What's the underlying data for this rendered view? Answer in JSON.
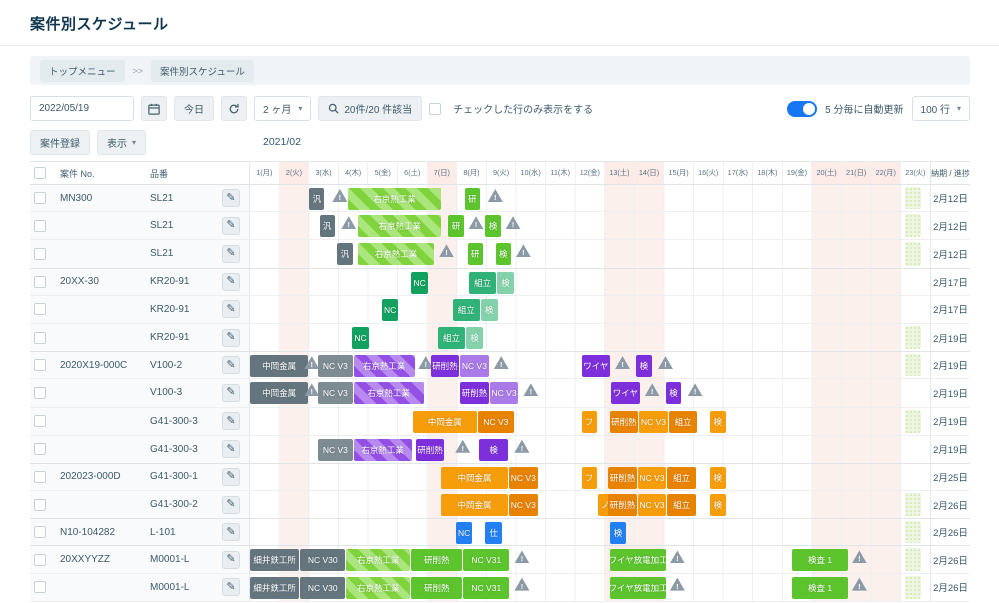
{
  "page": {
    "title": "案件別スケジュール"
  },
  "breadcrumb": {
    "items": [
      "トップメニュー",
      "案件別スケジュール"
    ],
    "sep": ">>"
  },
  "icons": {
    "edit": "✎",
    "chevron_down": "▾"
  },
  "colors": {
    "accent_blue": "#1777f2",
    "holiday_pink": "#fcf0ec",
    "green": "#5cc42d",
    "purple": "#7e2fdc",
    "orange": "#f59d0a",
    "gray": "#64757e",
    "warn": "#8b9aa6"
  },
  "toolbar": {
    "date": "2022/05/19",
    "today": "今日",
    "period": "2 ヶ月",
    "search_label": "20件/20 件該当",
    "filter_checkbox_label": "チェックした行のみ表示をする",
    "auto_refresh_label": "5 分毎に自動更新",
    "rows_select": "100 行"
  },
  "actions": {
    "register": "案件登録",
    "display": "表示"
  },
  "gantt": {
    "month": "2021/02",
    "col_no": "案件 No.",
    "col_part": "品番",
    "col_due": "納期 / 進捗",
    "days": [
      {
        "label": "1(月)",
        "off": false
      },
      {
        "label": "2(火)",
        "off": true
      },
      {
        "label": "3(水)",
        "off": false
      },
      {
        "label": "4(木)",
        "off": false
      },
      {
        "label": "5(金)",
        "off": false
      },
      {
        "label": "6(土)",
        "off": false
      },
      {
        "label": "7(日)",
        "off": true
      },
      {
        "label": "8(月)",
        "off": false
      },
      {
        "label": "9(火)",
        "off": false
      },
      {
        "label": "10(水)",
        "off": false
      },
      {
        "label": "11(木)",
        "off": false
      },
      {
        "label": "12(金)",
        "off": false
      },
      {
        "label": "13(土)",
        "off": true
      },
      {
        "label": "14(日)",
        "off": true
      },
      {
        "label": "15(月)",
        "off": false
      },
      {
        "label": "16(火)",
        "off": false
      },
      {
        "label": "17(水)",
        "off": false
      },
      {
        "label": "18(木)",
        "off": false
      },
      {
        "label": "19(金)",
        "off": false
      },
      {
        "label": "20(土)",
        "off": true
      },
      {
        "label": "21(日)",
        "off": true
      },
      {
        "label": "22(月)",
        "off": true
      },
      {
        "label": "23(火)",
        "off": false
      }
    ]
  },
  "rows": [
    {
      "no": "MN300",
      "part": "SL21",
      "due": "2月12日",
      "progress": true,
      "bars": [
        {
          "t": "bar",
          "l": "汎",
          "c": "gray",
          "s": 3.0,
          "w": 0.55
        },
        {
          "t": "warn",
          "s": 3.75
        },
        {
          "t": "bar",
          "l": "右京熱工業",
          "c": "gstripe",
          "s": 4.3,
          "w": 3.2
        },
        {
          "t": "bar",
          "l": "研",
          "c": "green",
          "s": 8.25,
          "w": 0.55
        },
        {
          "t": "warn",
          "s": 9.0
        }
      ]
    },
    {
      "no": "",
      "part": "SL21",
      "due": "2月12日",
      "progress": true,
      "bars": [
        {
          "t": "bar",
          "l": "汎",
          "c": "gray",
          "s": 3.35,
          "w": 0.55
        },
        {
          "t": "warn",
          "s": 4.05
        },
        {
          "t": "bar",
          "l": "右京熱工業",
          "c": "gstripe",
          "s": 4.65,
          "w": 2.85
        },
        {
          "t": "bar",
          "l": "研",
          "c": "green",
          "s": 7.7,
          "w": 0.55
        },
        {
          "t": "warn",
          "s": 8.35
        },
        {
          "t": "bar",
          "l": "検",
          "c": "green",
          "s": 8.95,
          "w": 0.55
        },
        {
          "t": "warn",
          "s": 9.6
        }
      ]
    },
    {
      "no": "",
      "part": "SL21",
      "due": "2月12日",
      "progress": true,
      "bars": [
        {
          "t": "bar",
          "l": "汎",
          "c": "gray",
          "s": 3.95,
          "w": 0.55
        },
        {
          "t": "bar",
          "l": "右京熱工業",
          "c": "gstripe",
          "s": 4.65,
          "w": 2.6
        },
        {
          "t": "warn",
          "s": 7.35
        },
        {
          "t": "bar",
          "l": "研",
          "c": "green",
          "s": 8.35,
          "w": 0.55
        },
        {
          "t": "bar",
          "l": "検",
          "c": "green",
          "s": 9.3,
          "w": 0.55
        },
        {
          "t": "warn",
          "s": 9.95
        }
      ]
    },
    {
      "no": "20XX-30",
      "part": "KR20-91",
      "due": "2月17日",
      "progress": false,
      "bars": [
        {
          "t": "bar",
          "l": "NC",
          "c": "gdark",
          "s": 6.45,
          "w": 0.6
        },
        {
          "t": "bar",
          "l": "組立",
          "c": "gmid",
          "s": 8.4,
          "w": 0.95
        },
        {
          "t": "bar",
          "l": "検",
          "c": "glight",
          "s": 9.35,
          "w": 0.6
        }
      ]
    },
    {
      "no": "",
      "part": "KR20-91",
      "due": "2月17日",
      "progress": false,
      "bars": [
        {
          "t": "bar",
          "l": "NC",
          "c": "gdark",
          "s": 5.45,
          "w": 0.6
        },
        {
          "t": "bar",
          "l": "組立",
          "c": "gmid",
          "s": 7.85,
          "w": 0.95
        },
        {
          "t": "bar",
          "l": "検",
          "c": "glight",
          "s": 8.8,
          "w": 0.6
        }
      ]
    },
    {
      "no": "",
      "part": "KR20-91",
      "due": "2月19日",
      "progress": true,
      "bars": [
        {
          "t": "bar",
          "l": "NC",
          "c": "gdark",
          "s": 4.45,
          "w": 0.6
        },
        {
          "t": "bar",
          "l": "組立",
          "c": "gmid",
          "s": 7.35,
          "w": 0.95
        },
        {
          "t": "bar",
          "l": "検",
          "c": "glight",
          "s": 8.3,
          "w": 0.6
        }
      ]
    },
    {
      "no": "2020X19-000C",
      "part": "V100-2",
      "due": "2月19日",
      "progress": true,
      "bars": [
        {
          "t": "bar",
          "l": "中岡金属",
          "c": "gray",
          "s": 1,
          "w": 2.0
        },
        {
          "t": "warn",
          "s": 2.8
        },
        {
          "t": "bar",
          "l": "NC V3",
          "c": "gray2",
          "s": 3.3,
          "w": 1.2
        },
        {
          "t": "bar",
          "l": "右京熱工業",
          "c": "pstripe",
          "s": 4.5,
          "w": 2.1
        },
        {
          "t": "warn",
          "s": 6.65
        },
        {
          "t": "bar",
          "l": "研削熱",
          "c": "purple",
          "s": 7.1,
          "w": 1.0
        },
        {
          "t": "bar",
          "l": "NC V3",
          "c": "plight",
          "s": 8.1,
          "w": 1.0
        },
        {
          "t": "warn",
          "s": 9.2
        },
        {
          "t": "bar",
          "l": "ワイヤ",
          "c": "purple",
          "s": 12.2,
          "w": 1.0
        },
        {
          "t": "warn",
          "s": 13.3
        },
        {
          "t": "bar",
          "l": "検",
          "c": "purple",
          "s": 14.05,
          "w": 0.55
        },
        {
          "t": "warn",
          "s": 14.75
        }
      ]
    },
    {
      "no": "",
      "part": "V100-3",
      "due": "2月19日",
      "progress": false,
      "bars": [
        {
          "t": "bar",
          "l": "中岡金属",
          "c": "gray",
          "s": 1,
          "w": 2.0
        },
        {
          "t": "warn",
          "s": 2.8
        },
        {
          "t": "bar",
          "l": "NC V3",
          "c": "gray2",
          "s": 3.3,
          "w": 1.2
        },
        {
          "t": "bar",
          "l": "右京熱工業",
          "c": "pstripe",
          "s": 4.5,
          "w": 2.4
        },
        {
          "t": "bar",
          "l": "研削熱",
          "c": "purple",
          "s": 8.1,
          "w": 1.0
        },
        {
          "t": "bar",
          "l": "NC V3",
          "c": "plight",
          "s": 9.1,
          "w": 1.0
        },
        {
          "t": "warn",
          "s": 10.2
        },
        {
          "t": "bar",
          "l": "ワイヤ",
          "c": "purple",
          "s": 13.2,
          "w": 1.0
        },
        {
          "t": "warn",
          "s": 14.3
        },
        {
          "t": "bar",
          "l": "検",
          "c": "purple",
          "s": 15.05,
          "w": 0.55
        },
        {
          "t": "warn",
          "s": 15.75
        }
      ]
    },
    {
      "no": "",
      "part": "G41-300-3",
      "due": "2月19日",
      "progress": true,
      "bars": [
        {
          "t": "bar",
          "l": "中岡金属",
          "c": "orange",
          "s": 6.5,
          "w": 2.2
        },
        {
          "t": "bar",
          "l": "NC V3",
          "c": "orange2",
          "s": 8.7,
          "w": 1.25
        },
        {
          "t": "bar",
          "l": "フ",
          "c": "orange",
          "s": 12.2,
          "w": 0.55
        },
        {
          "t": "bar",
          "l": "研削熱",
          "c": "orange2",
          "s": 13.15,
          "w": 1.0
        },
        {
          "t": "bar",
          "l": "NC V3",
          "c": "orange",
          "s": 14.15,
          "w": 1.0
        },
        {
          "t": "bar",
          "l": "組立",
          "c": "orange2",
          "s": 15.15,
          "w": 1.0
        },
        {
          "t": "bar",
          "l": "検",
          "c": "orange",
          "s": 16.55,
          "w": 0.55
        }
      ]
    },
    {
      "no": "",
      "part": "G41-300-3",
      "due": "2月19日",
      "progress": false,
      "bars": [
        {
          "t": "bar",
          "l": "NC V3",
          "c": "gray2",
          "s": 3.3,
          "w": 1.2
        },
        {
          "t": "bar",
          "l": "右京熱工業",
          "c": "pstripe",
          "s": 4.5,
          "w": 2.0
        },
        {
          "t": "bar",
          "l": "研削熱",
          "c": "purple",
          "s": 6.6,
          "w": 1.0
        },
        {
          "t": "warn",
          "s": 7.9
        },
        {
          "t": "bar",
          "l": "検",
          "c": "purple",
          "s": 8.75,
          "w": 1.0
        },
        {
          "t": "warn",
          "s": 9.9
        }
      ]
    },
    {
      "no": "202023-000D",
      "part": "G41-300-1",
      "due": "2月25日",
      "progress": false,
      "bars": [
        {
          "t": "bar",
          "l": "中岡金属",
          "c": "orange",
          "s": 7.45,
          "w": 2.3
        },
        {
          "t": "bar",
          "l": "NC V3",
          "c": "orange2",
          "s": 9.75,
          "w": 1.0
        },
        {
          "t": "bar",
          "l": "フ",
          "c": "orange",
          "s": 12.2,
          "w": 0.55
        },
        {
          "t": "bar",
          "l": "研削熱",
          "c": "orange2",
          "s": 13.1,
          "w": 1.0
        },
        {
          "t": "bar",
          "l": "NC V3",
          "c": "orange",
          "s": 14.1,
          "w": 1.0
        },
        {
          "t": "bar",
          "l": "組立",
          "c": "orange2",
          "s": 15.1,
          "w": 1.0
        },
        {
          "t": "bar",
          "l": "検",
          "c": "orange",
          "s": 16.55,
          "w": 0.55
        }
      ]
    },
    {
      "no": "",
      "part": "G41-300-2",
      "due": "2月26日",
      "progress": true,
      "bars": [
        {
          "t": "bar",
          "l": "中岡金属",
          "c": "orange",
          "s": 7.45,
          "w": 2.3
        },
        {
          "t": "bar",
          "l": "NC V3",
          "c": "orange2",
          "s": 9.75,
          "w": 1.0
        },
        {
          "t": "bar",
          "l": "ノ",
          "c": "orange",
          "s": 12.75,
          "w": 0.55
        },
        {
          "t": "bar",
          "l": "研削熱",
          "c": "orange2",
          "s": 13.1,
          "w": 1.0
        },
        {
          "t": "bar",
          "l": "NC V3",
          "c": "orange",
          "s": 14.1,
          "w": 1.0
        },
        {
          "t": "bar",
          "l": "組立",
          "c": "orange2",
          "s": 15.1,
          "w": 1.0
        },
        {
          "t": "bar",
          "l": "検",
          "c": "orange",
          "s": 16.55,
          "w": 0.55
        }
      ]
    },
    {
      "no": "N10-104282",
      "part": "L-101",
      "due": "2月26日",
      "progress": true,
      "bars": [
        {
          "t": "bar",
          "l": "NC",
          "c": "blue",
          "s": 7.95,
          "w": 0.6
        },
        {
          "t": "bar",
          "l": "仕",
          "c": "blue",
          "s": 8.95,
          "w": 0.6
        },
        {
          "t": "bar",
          "l": "検",
          "c": "blue",
          "s": 13.15,
          "w": 0.6
        }
      ]
    },
    {
      "no": "20XXYYZZ",
      "part": "M0001-L",
      "due": "2月26日",
      "progress": true,
      "bars": [
        {
          "t": "bar",
          "l": "細井鉄工所",
          "c": "gray",
          "s": 1,
          "w": 1.7
        },
        {
          "t": "bar",
          "l": "NC V30",
          "c": "gray",
          "s": 2.7,
          "w": 1.55
        },
        {
          "t": "bar",
          "l": "右京熱工業",
          "c": "gstripe",
          "s": 4.25,
          "w": 2.2
        },
        {
          "t": "bar",
          "l": "研削熱",
          "c": "green",
          "s": 6.45,
          "w": 1.75
        },
        {
          "t": "bar",
          "l": "NC V31",
          "c": "green",
          "s": 8.2,
          "w": 1.6
        },
        {
          "t": "warn",
          "s": 9.9
        },
        {
          "t": "bar",
          "l": "ワイヤ放電加工",
          "c": "green",
          "s": 13.15,
          "w": 1.95
        },
        {
          "t": "warn",
          "s": 15.15
        },
        {
          "t": "bar",
          "l": "検査 1",
          "c": "green",
          "s": 19.3,
          "w": 1.95
        },
        {
          "t": "warn",
          "s": 21.3
        }
      ]
    },
    {
      "no": "",
      "part": "M0001-L",
      "due": "2月26日",
      "progress": true,
      "bars": [
        {
          "t": "bar",
          "l": "細井鉄工所",
          "c": "gray",
          "s": 1,
          "w": 1.7
        },
        {
          "t": "bar",
          "l": "NC V30",
          "c": "gray",
          "s": 2.7,
          "w": 1.55
        },
        {
          "t": "bar",
          "l": "右京熱工業",
          "c": "gstripe",
          "s": 4.25,
          "w": 2.2
        },
        {
          "t": "bar",
          "l": "研削熱",
          "c": "green",
          "s": 6.45,
          "w": 1.75
        },
        {
          "t": "bar",
          "l": "NC V31",
          "c": "green",
          "s": 8.2,
          "w": 1.6
        },
        {
          "t": "warn",
          "s": 9.9
        },
        {
          "t": "bar",
          "l": "ワイヤ放電加工",
          "c": "green",
          "s": 13.15,
          "w": 1.95
        },
        {
          "t": "warn",
          "s": 15.15
        },
        {
          "t": "bar",
          "l": "検査 1",
          "c": "green",
          "s": 19.3,
          "w": 1.95
        },
        {
          "t": "warn",
          "s": 21.3
        }
      ]
    }
  ]
}
